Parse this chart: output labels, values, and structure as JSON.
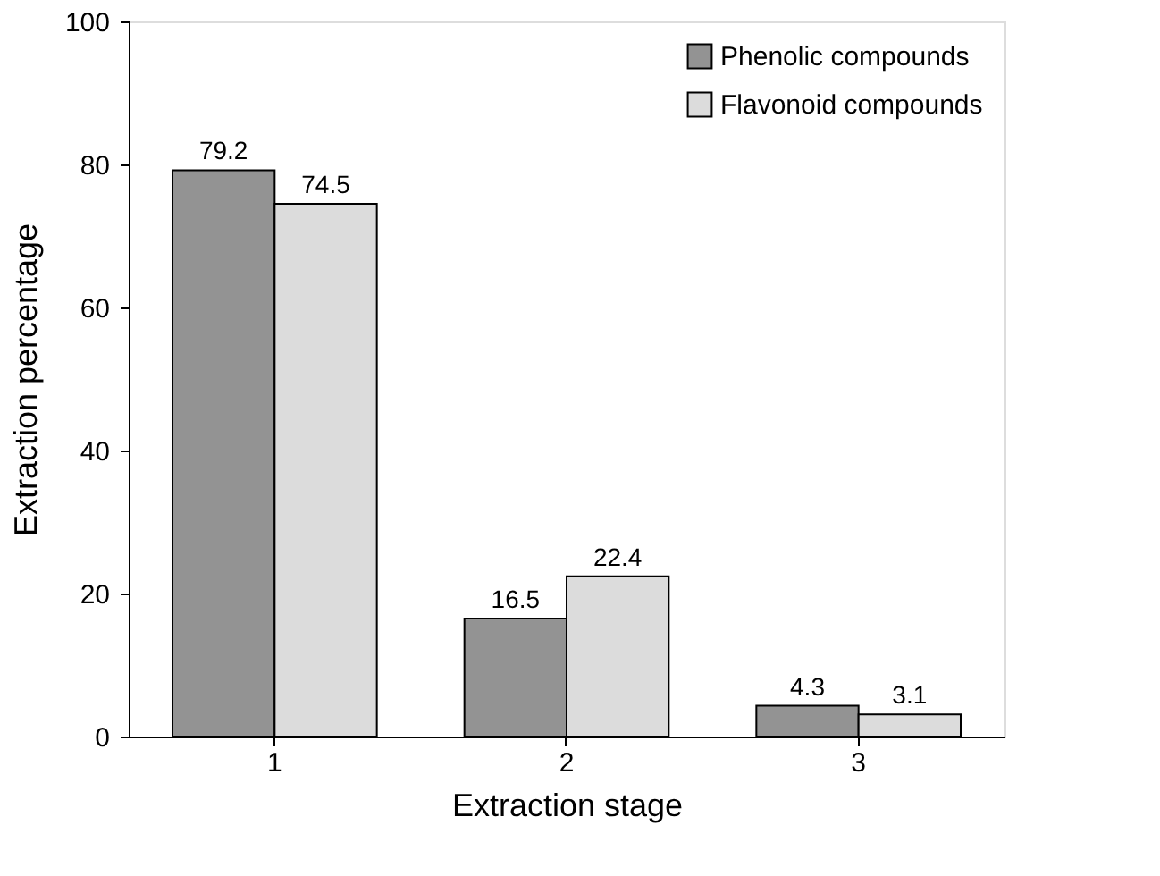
{
  "chart_data": {
    "type": "bar",
    "xlabel": "Extraction stage",
    "ylabel": "Extraction percentage",
    "categories": [
      "1",
      "2",
      "3"
    ],
    "series": [
      {
        "name": "Phenolic compounds",
        "color": "#939393",
        "values": [
          79.2,
          16.5,
          4.3
        ]
      },
      {
        "name": "Flavonoid compounds",
        "color": "#dcdcdc",
        "values": [
          74.5,
          22.4,
          3.1
        ]
      }
    ],
    "ylim": [
      0,
      100
    ],
    "yticks": [
      0,
      20,
      40,
      60,
      80,
      100
    ],
    "data_labels": true,
    "legend": "top right",
    "grid": false
  }
}
